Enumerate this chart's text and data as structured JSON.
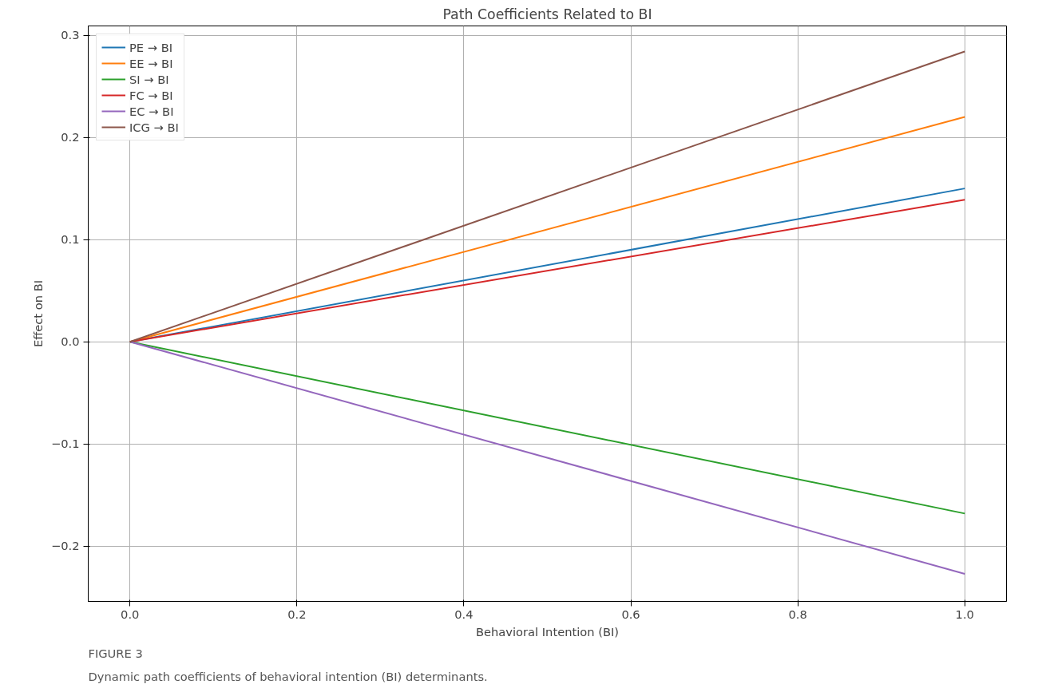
{
  "chart_data": {
    "type": "line",
    "title": "Path Coefficients Related to BI",
    "xlabel": "Behavioral Intention (BI)",
    "ylabel": "Effect on BI",
    "x": [
      0,
      1
    ],
    "series": [
      {
        "name": "PE → BI",
        "color": "#1f77b4",
        "values": [
          0,
          0.15
        ]
      },
      {
        "name": "EE → BI",
        "color": "#ff7f0e",
        "values": [
          0,
          0.22
        ]
      },
      {
        "name": "SI → BI",
        "color": "#2ca02c",
        "values": [
          0,
          -0.168
        ]
      },
      {
        "name": "FC → BI",
        "color": "#d62728",
        "values": [
          0,
          0.139
        ]
      },
      {
        "name": "EC → BI",
        "color": "#9467bd",
        "values": [
          0,
          -0.227
        ]
      },
      {
        "name": "ICG → BI",
        "color": "#8c564b",
        "values": [
          0,
          0.284
        ]
      }
    ],
    "xlim": [
      -0.05,
      1.05
    ],
    "xticks": [
      {
        "value": 0,
        "label": "0.0"
      },
      {
        "value": 0.2,
        "label": "0.2"
      },
      {
        "value": 0.4,
        "label": "0.4"
      },
      {
        "value": 0.6,
        "label": "0.6"
      },
      {
        "value": 0.8,
        "label": "0.8"
      },
      {
        "value": 1,
        "label": "1.0"
      }
    ],
    "ylim": [
      -0.254,
      0.309
    ],
    "yticks": [
      {
        "value": -0.2,
        "label": "−0.2"
      },
      {
        "value": -0.1,
        "label": "−0.1"
      },
      {
        "value": 0,
        "label": "0.0"
      },
      {
        "value": 0.1,
        "label": "0.1"
      },
      {
        "value": 0.2,
        "label": "0.2"
      },
      {
        "value": 0.3,
        "label": "0.3"
      }
    ],
    "grid": true,
    "legend": "top left",
    "marker": "none",
    "line_style": "solid",
    "annotations": [
      "FIGURE 3",
      "Dynamic path coefficients of behavioral intention (BI) determinants."
    ]
  }
}
